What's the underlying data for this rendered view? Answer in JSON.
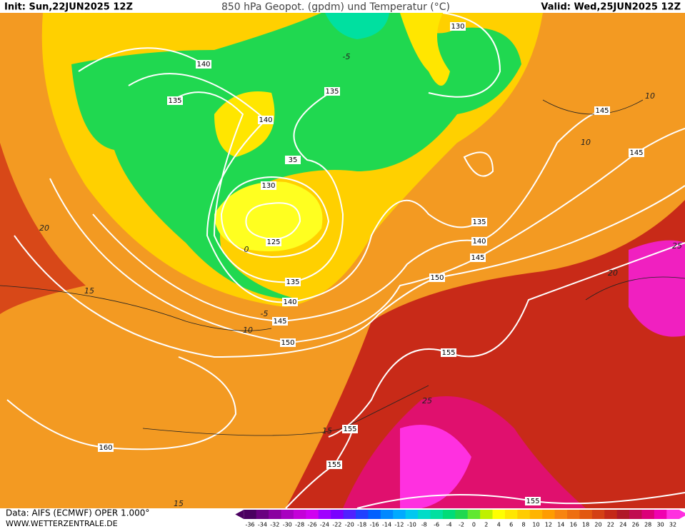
{
  "header": {
    "init": "Init: Sun,22JUN2025 12Z",
    "title": "850 hPa Geopot. (gpdm) und Temperatur (°C)",
    "valid": "Valid: Wed,25JUN2025 12Z"
  },
  "footer": {
    "source": "Data: AIFS (ECMWF) OPER 1.000°",
    "site": "WWW.WETTERZENTRALE.DE"
  },
  "colorbar": {
    "ticks": [
      -36,
      -34,
      -32,
      -30,
      -28,
      -26,
      -24,
      -22,
      -20,
      -18,
      -16,
      -14,
      -12,
      -10,
      -8,
      -6,
      -4,
      -2,
      0,
      2,
      4,
      6,
      8,
      10,
      12,
      14,
      16,
      18,
      20,
      22,
      24,
      26,
      28,
      30,
      32
    ],
    "colors": [
      "#4a0060",
      "#6a0080",
      "#8a00a0",
      "#a800c0",
      "#c400d8",
      "#d000f0",
      "#a000ff",
      "#7a00ff",
      "#5020ff",
      "#2040ff",
      "#0060ff",
      "#0088ff",
      "#00aaff",
      "#00c8f0",
      "#00dcc8",
      "#00e0a0",
      "#00dc78",
      "#20d850",
      "#60e830",
      "#c0f000",
      "#ffff00",
      "#ffe600",
      "#ffcc00",
      "#ffb400",
      "#ff9c00",
      "#f88410",
      "#ee6e10",
      "#e25810",
      "#d44014",
      "#c42818",
      "#b01828",
      "#c00c50",
      "#dc0078",
      "#f000b0",
      "#ff30e0"
    ]
  },
  "geopotential_labels": [
    "130",
    "140",
    "135",
    "135",
    "140",
    "145",
    "145",
    "35",
    "130",
    "125",
    "135",
    "140",
    "145",
    "150",
    "135",
    "140",
    "145",
    "150",
    "155",
    "155",
    "160",
    "155",
    "155"
  ],
  "temperature_labels": [
    "-5",
    "10",
    "10",
    "20",
    "15",
    "10",
    "-5",
    "0",
    "20",
    "25",
    "15",
    "15",
    "25"
  ]
}
